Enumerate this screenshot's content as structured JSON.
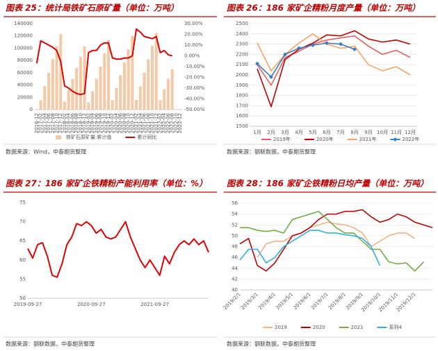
{
  "chart_data": [
    {
      "type": "bar",
      "title": "图表 25：统计局铁矿石原矿量（单位：万吨）",
      "source": "数据来源：Wind，中泰期货整理",
      "categories": [
        "2016-12",
        "2017-02",
        "2017-04",
        "2017-06",
        "2017-08",
        "2017-10",
        "2017-12",
        "2018-02",
        "2018-04",
        "2018-06",
        "2018-08",
        "2018-10",
        "2018-12",
        "2019-02",
        "2019-04",
        "2019-06",
        "2019-08",
        "2019-10",
        "2019-12",
        "2020-02",
        "2020-04",
        "2020-06",
        "2020-08",
        "2020-10",
        "2020-12",
        "2021-02",
        "2021-04",
        "2021-06",
        "2021-08",
        "2021-10",
        "2021-12",
        "2022-02",
        "2022-04",
        "2022-06",
        "2022-08",
        "2022-10",
        "2022-12"
      ],
      "series": [
        {
          "name": "铁矿石原矿量:累计值",
          "color": "#f5c9a6",
          "values": [
            null,
            15000,
            38000,
            60000,
            82000,
            103000,
            123000,
            13000,
            32000,
            50000,
            68000,
            86000,
            103000,
            12000,
            30000,
            50000,
            70000,
            92000,
            113000,
            15000,
            35000,
            56000,
            77000,
            98000,
            120000,
            16000,
            38000,
            60000,
            82000,
            104000,
            125000,
            15000,
            33000,
            50000,
            66000,
            null,
            null
          ]
        },
        {
          "name": "累计同比",
          "type": "line",
          "axis": "y2",
          "color": "#e00000",
          "values": [
            -7,
            14,
            12,
            10,
            8,
            5,
            -5,
            -28,
            -30,
            -33,
            -35,
            -36,
            -35,
            3,
            5,
            5,
            10,
            12,
            12,
            -2,
            -3,
            -3,
            -2,
            -2,
            0,
            25,
            22,
            18,
            17,
            16,
            18,
            3,
            5,
            1,
            0,
            null,
            null
          ]
        }
      ],
      "ylim": [
        0,
        140000
      ],
      "yticks": [
        0,
        20000,
        40000,
        60000,
        80000,
        100000,
        120000,
        140000
      ],
      "y2lim": [
        -50,
        30
      ],
      "y2ticks": [
        {
          "value": 30,
          "label": "30.00%"
        },
        {
          "value": 20,
          "label": "20.00%"
        },
        {
          "value": 10,
          "label": "10.00%"
        },
        {
          "value": 0,
          "label": "0.00%"
        },
        {
          "value": -10,
          "label": "-10.00%"
        },
        {
          "value": -20,
          "label": "-20.00%"
        },
        {
          "value": -30,
          "label": "-30.00%"
        },
        {
          "value": -40,
          "label": "-40.00%"
        },
        {
          "value": -50,
          "label": "-50.00%"
        }
      ],
      "grid": false
    },
    {
      "type": "line",
      "title": "图表 26：186 家矿企精粉月度产量（单位：万吨）",
      "source": "数据来源：钢联数据，中泰期货整理",
      "categories": [
        "1月",
        "2月",
        "3月",
        "4月",
        "5月",
        "6月",
        "7月",
        "8月",
        "9月",
        "10月",
        "11月",
        "12月"
      ],
      "series": [
        {
          "name": "2019年",
          "color": "#e06060",
          "values": [
            2100,
            1900,
            2170,
            2230,
            2300,
            2340,
            2360,
            2380,
            2280,
            2200,
            2240,
            2170
          ]
        },
        {
          "name": "2020年",
          "color": "#c00000",
          "values": [
            2060,
            1690,
            2150,
            2250,
            2310,
            2390,
            2380,
            2430,
            2350,
            2320,
            2340,
            2300
          ]
        },
        {
          "name": "2021年",
          "color": "#f4a460",
          "values": [
            2310,
            2040,
            2200,
            2310,
            2400,
            2300,
            2260,
            2280,
            2100,
            2040,
            2080,
            2000
          ]
        },
        {
          "name": "2022年",
          "color": "#3a7cc1",
          "marker": "diamond",
          "values": [
            2110,
            1980,
            2200,
            2260,
            2290,
            2310,
            2300,
            2250,
            null,
            null,
            null,
            null
          ]
        }
      ],
      "ylim": [
        1500,
        2500
      ],
      "yticks": [
        1500,
        1600,
        1700,
        1800,
        1900,
        2000,
        2100,
        2200,
        2300,
        2400,
        2500
      ],
      "grid": true
    },
    {
      "type": "line",
      "title": "图表 27：186 家矿企铁精粉产能利用率（单位：%）",
      "source": "数据来源：钢联数据，中泰期货整理",
      "categories": [
        "2019-09-27",
        null,
        null,
        null,
        null,
        null,
        null,
        null,
        null,
        null,
        null,
        null,
        null,
        "2020-09-27",
        null,
        null,
        null,
        null,
        null,
        null,
        null,
        null,
        null,
        null,
        null,
        null,
        "2021-09-27",
        null,
        null,
        null,
        null,
        null,
        null,
        null,
        null,
        null,
        null,
        null
      ],
      "values": [
        63,
        60.5,
        64,
        64.5,
        61,
        56,
        55.5,
        59,
        64,
        66,
        69.5,
        69,
        70,
        69,
        67,
        68,
        66,
        65.5,
        66,
        68,
        70,
        66,
        63,
        60,
        58,
        60,
        58,
        56,
        61,
        59,
        62,
        64,
        65,
        64,
        65.5,
        64,
        65,
        62
      ],
      "color": "#e00000",
      "ylim": [
        50,
        75
      ],
      "yticks": [
        50,
        55,
        60,
        65,
        70,
        75
      ],
      "grid": false
    },
    {
      "type": "line",
      "title": "图表 28：186 家矿企铁精粉日均产量（单位：万吨）",
      "source": "数据来源：钢联数据，中泰期货整理",
      "categories": [
        "2019/2/1",
        null,
        "2019/3/1",
        null,
        "2019/4/1",
        null,
        "2019/5/1",
        null,
        "2019/6/1",
        null,
        "2019/7/1",
        null,
        "2019/8/1",
        null,
        "2019/9/1",
        null,
        "2019/10/1",
        null,
        "2019/11/1",
        null,
        "2019/12/1",
        null,
        null
      ],
      "series": [
        {
          "name": "2019",
          "color": "#f4b183",
          "values": [
            null,
            null,
            46,
            48.5,
            49,
            49,
            50,
            50.5,
            51.5,
            52,
            52.5,
            52.2,
            52,
            51.5,
            50.5,
            48,
            49,
            50,
            50.5,
            50.5,
            49.5,
            null,
            null
          ]
        },
        {
          "name": "2020",
          "color": "#c00000",
          "values": [
            48.5,
            49.5,
            44.5,
            43.5,
            45,
            47.5,
            50,
            50.5,
            51.5,
            53,
            54,
            54,
            54.5,
            54.5,
            54.8,
            53.5,
            52.5,
            53,
            54,
            53.5,
            52.5,
            52,
            51.5
          ]
        },
        {
          "name": "2021",
          "color": "#70ad47",
          "values": [
            51.5,
            51.5,
            51,
            50.8,
            51,
            50.5,
            53,
            53.5,
            54,
            54.5,
            53,
            51.5,
            50.5,
            50.5,
            49,
            47.5,
            47.5,
            45.2,
            44.8,
            45,
            43.5,
            45.2,
            null
          ]
        },
        {
          "name": "系列4",
          "color": "#2fb0e0",
          "values": [
            45.5,
            47.5,
            47.5,
            45,
            46,
            48,
            49,
            50,
            51,
            51,
            50.5,
            50.5,
            50.2,
            50,
            49.5,
            48,
            44.5,
            null,
            null,
            null,
            null,
            null,
            null
          ]
        }
      ],
      "ylim": [
        40,
        56
      ],
      "yticks": [
        40,
        42,
        44,
        46,
        48,
        50,
        52,
        54,
        56
      ],
      "grid": true
    }
  ]
}
